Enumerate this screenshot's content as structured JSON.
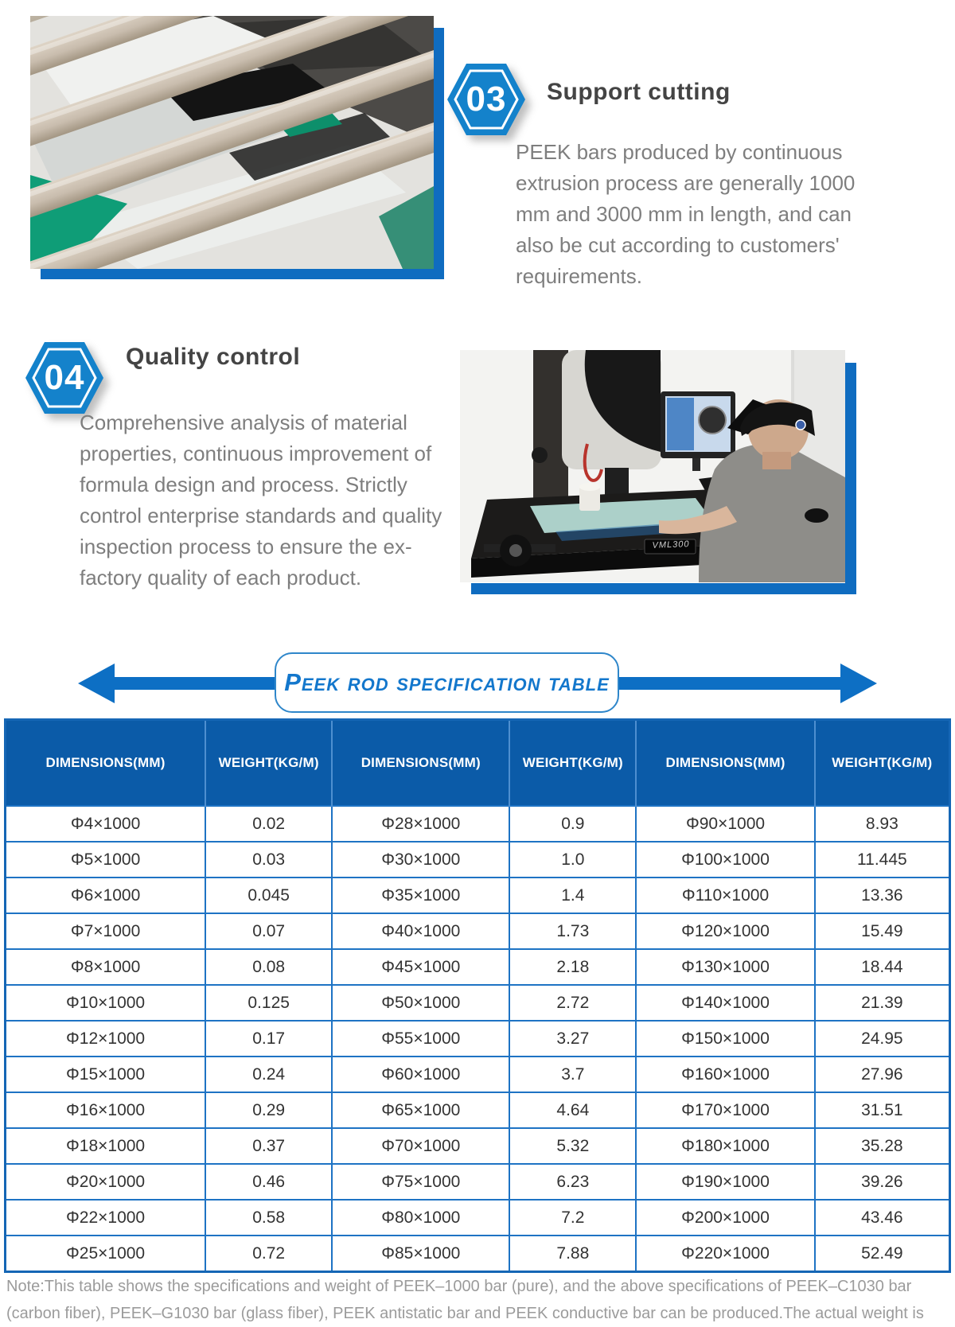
{
  "colors": {
    "accent_blue": "#1482cb",
    "frame_blue": "#0f6cc0",
    "table_header_blue": "#0b5ba8",
    "table_border_blue": "#1e73c4",
    "banner_text_blue": "#1377cc",
    "title_gray": "#444444",
    "body_gray": "#7e7e7e",
    "note_gray": "#9b9b9b"
  },
  "sections": [
    {
      "number": "03",
      "title": "Support cutting",
      "body": "PEEK bars produced by continuous extrusion process are generally 1000 mm and 3000 mm in length, and can also be cut according to customers' requirements."
    },
    {
      "number": "04",
      "title": "Quality control",
      "body": "Comprehensive analysis of material properties, continuous improvement of formula design and process. Strictly control enterprise standards and quality inspection process to ensure the ex-factory quality of each product."
    }
  ],
  "photos": {
    "rods": {
      "description": "peek-rods-on-extrusion-line"
    },
    "quality_control": {
      "machine_label": "VML300"
    }
  },
  "banner": {
    "label": "Peek rod specification table"
  },
  "table": {
    "headers": [
      "DIMENSIONS(MM)",
      "WEIGHT(KG/M)",
      "DIMENSIONS(MM)",
      "WEIGHT(KG/M)",
      "DIMENSIONS(MM)",
      "WEIGHT(KG/M)"
    ],
    "rows": [
      [
        "Φ4×1000",
        "0.02",
        "Φ28×1000",
        "0.9",
        "Φ90×1000",
        "8.93"
      ],
      [
        "Φ5×1000",
        "0.03",
        "Φ30×1000",
        "1.0",
        "Φ100×1000",
        "11.445"
      ],
      [
        "Φ6×1000",
        "0.045",
        "Φ35×1000",
        "1.4",
        "Φ110×1000",
        "13.36"
      ],
      [
        "Φ7×1000",
        "0.07",
        "Φ40×1000",
        "1.73",
        "Φ120×1000",
        "15.49"
      ],
      [
        "Φ8×1000",
        "0.08",
        "Φ45×1000",
        "2.18",
        "Φ130×1000",
        "18.44"
      ],
      [
        "Φ10×1000",
        "0.125",
        "Φ50×1000",
        "2.72",
        "Φ140×1000",
        "21.39"
      ],
      [
        "Φ12×1000",
        "0.17",
        "Φ55×1000",
        "3.27",
        "Φ150×1000",
        "24.95"
      ],
      [
        "Φ15×1000",
        "0.24",
        "Φ60×1000",
        "3.7",
        "Φ160×1000",
        "27.96"
      ],
      [
        "Φ16×1000",
        "0.29",
        "Φ65×1000",
        "4.64",
        "Φ170×1000",
        "31.51"
      ],
      [
        "Φ18×1000",
        "0.37",
        "Φ70×1000",
        "5.32",
        "Φ180×1000",
        "35.28"
      ],
      [
        "Φ20×1000",
        "0.46",
        "Φ75×1000",
        "6.23",
        "Φ190×1000",
        "39.26"
      ],
      [
        "Φ22×1000",
        "0.58",
        "Φ80×1000",
        "7.2",
        "Φ200×1000",
        "43.46"
      ],
      [
        "Φ25×1000",
        "0.72",
        "Φ85×1000",
        "7.88",
        "Φ220×1000",
        "52.49"
      ]
    ]
  },
  "note": "Note:This table shows the specifications and weight of PEEK–1000 bar (pure), and the above specifications of PEEK–C1030 bar (carbon fiber), PEEK–G1030 bar (glass fiber), PEEK antistatic bar and PEEK conductive bar can be produced.The actual weight is subject to weighting."
}
